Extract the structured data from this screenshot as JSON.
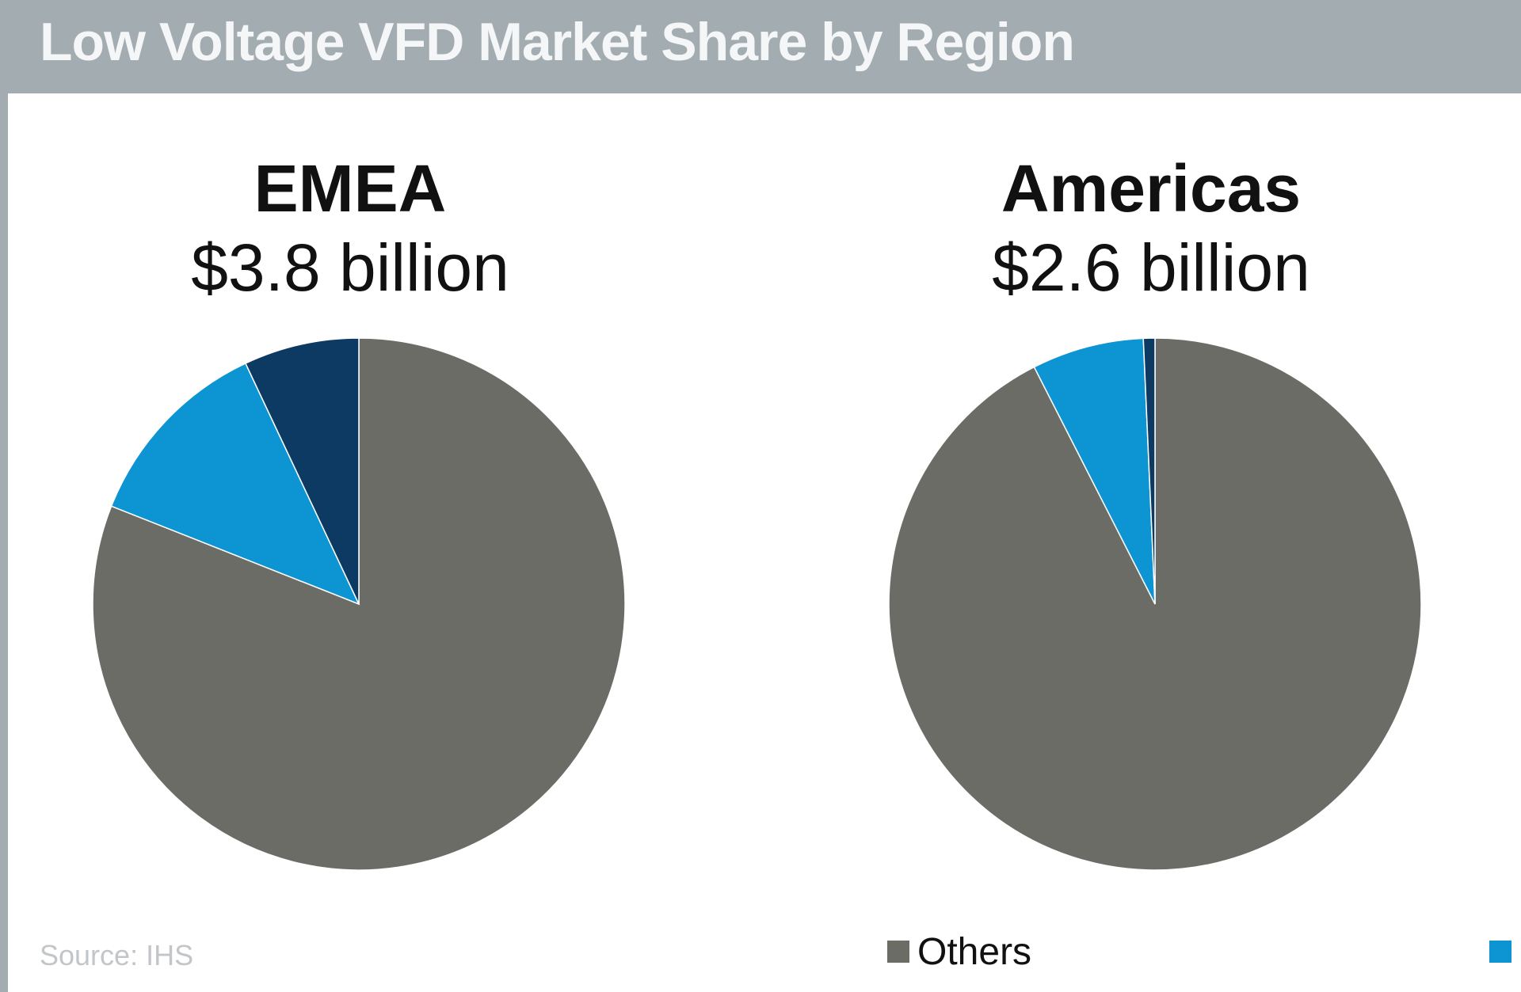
{
  "header": {
    "title": "Low Voltage VFD Market Share by Region"
  },
  "source": "Source: IHS",
  "legend": [
    {
      "label": "Others",
      "color": "#6b6c66"
    },
    {
      "label": "",
      "color": "#0d94d3"
    }
  ],
  "colors": {
    "others": "#6b6c66",
    "light_blue": "#0d94d3",
    "dark_blue": "#0c3a63",
    "header_bg": "#a3acb1"
  },
  "chart_data": [
    {
      "type": "pie",
      "title": "EMEA",
      "subtitle": "$3.8 billion",
      "slices": [
        {
          "label": "Others",
          "value": 81,
          "color": "#6b6c66"
        },
        {
          "label": "",
          "value": 12,
          "color": "#0d94d3"
        },
        {
          "label": "",
          "value": 7,
          "color": "#0c3a63"
        }
      ]
    },
    {
      "type": "pie",
      "title": "Americas",
      "subtitle": "$2.6 billion",
      "slices": [
        {
          "label": "Others",
          "value": 92.5,
          "color": "#6b6c66"
        },
        {
          "label": "",
          "value": 6.8,
          "color": "#0d94d3"
        },
        {
          "label": "",
          "value": 0.7,
          "color": "#0c3a63"
        }
      ]
    }
  ]
}
